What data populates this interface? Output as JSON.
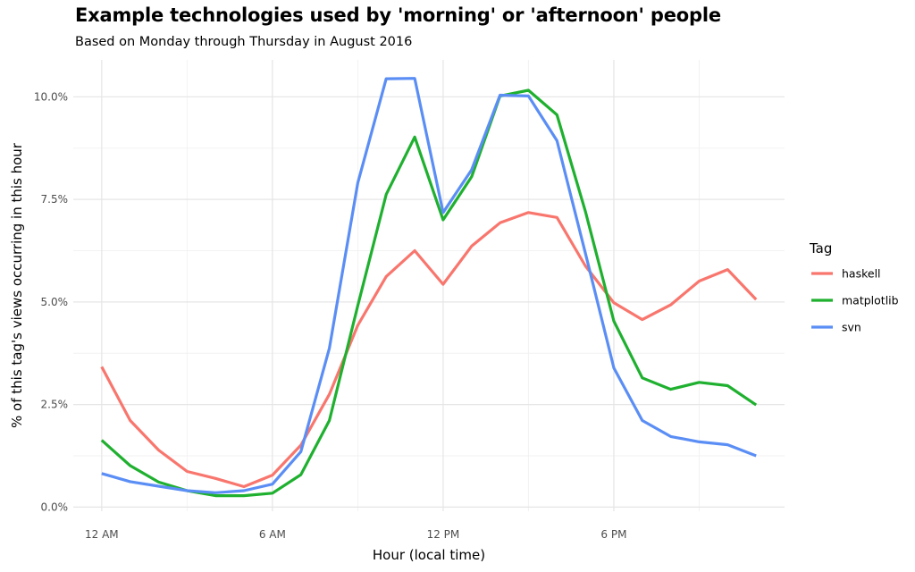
{
  "header": {
    "title": "Example technologies used by 'morning' or 'afternoon' people",
    "subtitle": "Based on Monday through Thursday in August 2016"
  },
  "colors": {
    "grid_major": "#e5e5e5",
    "grid_minor": "#f2f2f2",
    "haskell": "#F8766D",
    "matplotlib": "#1fb02f",
    "svn": "#5b8ef5"
  },
  "chart_data": {
    "type": "line",
    "title": "Example technologies used by 'morning' or 'afternoon' people",
    "subtitle": "Based on Monday through Thursday in August 2016",
    "xlabel": "Hour (local time)",
    "ylabel": "% of this tag's views occurring in this hour",
    "x": [
      0,
      1,
      2,
      3,
      4,
      5,
      6,
      7,
      8,
      9,
      10,
      11,
      12,
      13,
      14,
      15,
      16,
      17,
      18,
      19,
      20,
      21,
      22,
      23
    ],
    "x_ticks": [
      0,
      6,
      12,
      18
    ],
    "x_tick_labels": [
      "12 AM",
      "6 AM",
      "12 PM",
      "6 PM"
    ],
    "xlim": [
      -1,
      24
    ],
    "y_ticks": [
      0,
      2.5,
      5.0,
      7.5,
      10.0
    ],
    "y_tick_labels": [
      "0.0%",
      "2.5%",
      "5.0%",
      "7.5%",
      "10.0%"
    ],
    "ylim": [
      -0.1,
      10.9
    ],
    "grid": true,
    "legend_title": "Tag",
    "legend_position": "right",
    "series": [
      {
        "name": "haskell",
        "color": "#F8766D",
        "values": [
          3.42,
          2.11,
          1.39,
          0.87,
          0.7,
          0.5,
          0.78,
          1.51,
          2.75,
          4.43,
          5.62,
          6.25,
          5.43,
          6.36,
          6.93,
          7.18,
          7.06,
          5.88,
          4.98,
          4.57,
          4.93,
          5.51,
          5.79,
          5.06
        ]
      },
      {
        "name": "matplotlib",
        "color": "#1fb02f",
        "values": [
          1.63,
          1.01,
          0.61,
          0.4,
          0.28,
          0.28,
          0.34,
          0.79,
          2.11,
          4.91,
          7.62,
          9.02,
          7.0,
          8.05,
          10.02,
          10.16,
          9.56,
          7.21,
          4.53,
          3.15,
          2.87,
          3.04,
          2.96,
          2.49
        ]
      },
      {
        "name": "svn",
        "color": "#5b8ef5",
        "values": [
          0.82,
          0.62,
          0.51,
          0.4,
          0.35,
          0.4,
          0.56,
          1.35,
          3.87,
          7.9,
          10.44,
          10.45,
          7.18,
          8.22,
          10.04,
          10.02,
          8.93,
          6.19,
          3.39,
          2.11,
          1.72,
          1.59,
          1.52,
          1.25
        ]
      }
    ]
  }
}
